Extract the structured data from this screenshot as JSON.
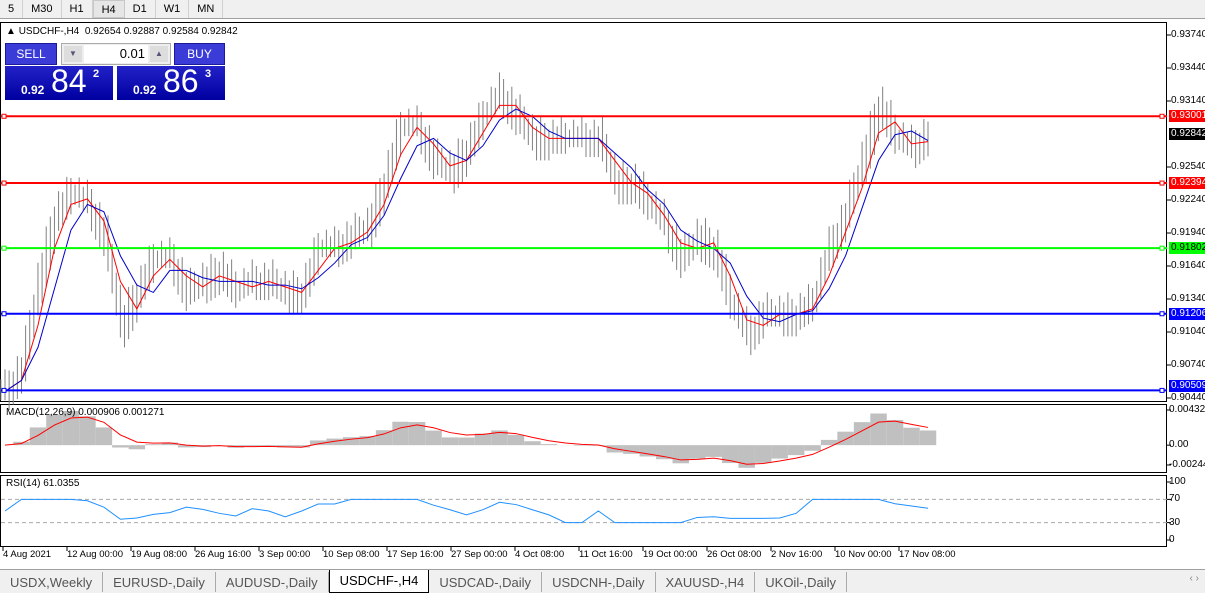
{
  "timeframes": [
    "5",
    "M30",
    "H1",
    "H4",
    "D1",
    "W1",
    "MN"
  ],
  "active_timeframe": "H4",
  "header": {
    "symbol_label": "USDCHF-,H4",
    "ohlc": "0.92654 0.92887 0.92584 0.92842"
  },
  "trade_panel": {
    "sell_label": "SELL",
    "buy_label": "BUY",
    "lot": "0.01",
    "sell_prefix": "0.92",
    "sell_big": "84",
    "sell_pip": "2",
    "buy_prefix": "0.92",
    "buy_big": "86",
    "buy_pip": "3"
  },
  "tabs": [
    "USDX,Weekly",
    "EURUSD-,Daily",
    "AUDUSD-,Daily",
    "USDCHF-,H4",
    "USDCAD-,Daily",
    "USDCNH-,Daily",
    "XAUUSD-,H4",
    "UKOil-,Daily"
  ],
  "active_tab": "USDCHF-,H4",
  "colors": {
    "candles": "#808080",
    "ma_fast": "#ff0000",
    "ma_slow": "#0000cc",
    "macd_hist": "#c0c0c0",
    "macd_signal": "#ff0000",
    "rsi": "#1e90ff"
  },
  "chart_data": {
    "type": "line",
    "title": "USDCHF-,H4",
    "y_ticks": [
      "0.93740",
      "0.93440",
      "0.93140",
      "0.92540",
      "0.92240",
      "0.91940",
      "0.91640",
      "0.91340",
      "0.91040",
      "0.90740",
      "0.90440"
    ],
    "ylim": [
      0.9044,
      0.9374
    ],
    "x_ticks": [
      "4 Aug 2021",
      "12 Aug 00:00",
      "19 Aug 08:00",
      "26 Aug 16:00",
      "3 Sep 00:00",
      "10 Sep 08:00",
      "17 Sep 16:00",
      "27 Sep 00:00",
      "4 Oct 08:00",
      "11 Oct 16:00",
      "19 Oct 00:00",
      "26 Oct 08:00",
      "2 Nov 16:00",
      "10 Nov 00:00",
      "17 Nov 08:00"
    ],
    "closes": [
      0.905,
      0.907,
      0.915,
      0.921,
      0.923,
      0.922,
      0.919,
      0.911,
      0.914,
      0.917,
      0.917,
      0.914,
      0.915,
      0.916,
      0.914,
      0.915,
      0.915,
      0.914,
      0.914,
      0.918,
      0.918,
      0.919,
      0.92,
      0.924,
      0.929,
      0.929,
      0.926,
      0.925,
      0.927,
      0.93,
      0.932,
      0.93,
      0.928,
      0.928,
      0.928,
      0.928,
      0.928,
      0.924,
      0.924,
      0.922,
      0.92,
      0.917,
      0.919,
      0.918,
      0.913,
      0.91,
      0.912,
      0.912,
      0.912,
      0.913,
      0.918,
      0.921,
      0.926,
      0.931,
      0.928,
      0.927,
      0.92842
    ],
    "levels": [
      {
        "value": "0.93001",
        "color": "#ff0000"
      },
      {
        "value": "0.92394",
        "color": "#ff0000"
      },
      {
        "value": "0.91802",
        "color": "#00ff00"
      },
      {
        "value": "0.91206",
        "color": "#0000ff"
      },
      {
        "value": "0.90509",
        "color": "#0000ff"
      }
    ],
    "current_price": "0.92842",
    "macd": {
      "label": "MACD(12,26,9) 0.000906 0.001271",
      "ticks": [
        "0.004323",
        "0.00",
        "-0.00244"
      ],
      "ylim": [
        -0.00244,
        0.004323
      ]
    },
    "rsi": {
      "label": "RSI(14) 61.0355",
      "ticks": [
        "100",
        "70",
        "30",
        "0"
      ],
      "levels": [
        70,
        30
      ]
    }
  }
}
